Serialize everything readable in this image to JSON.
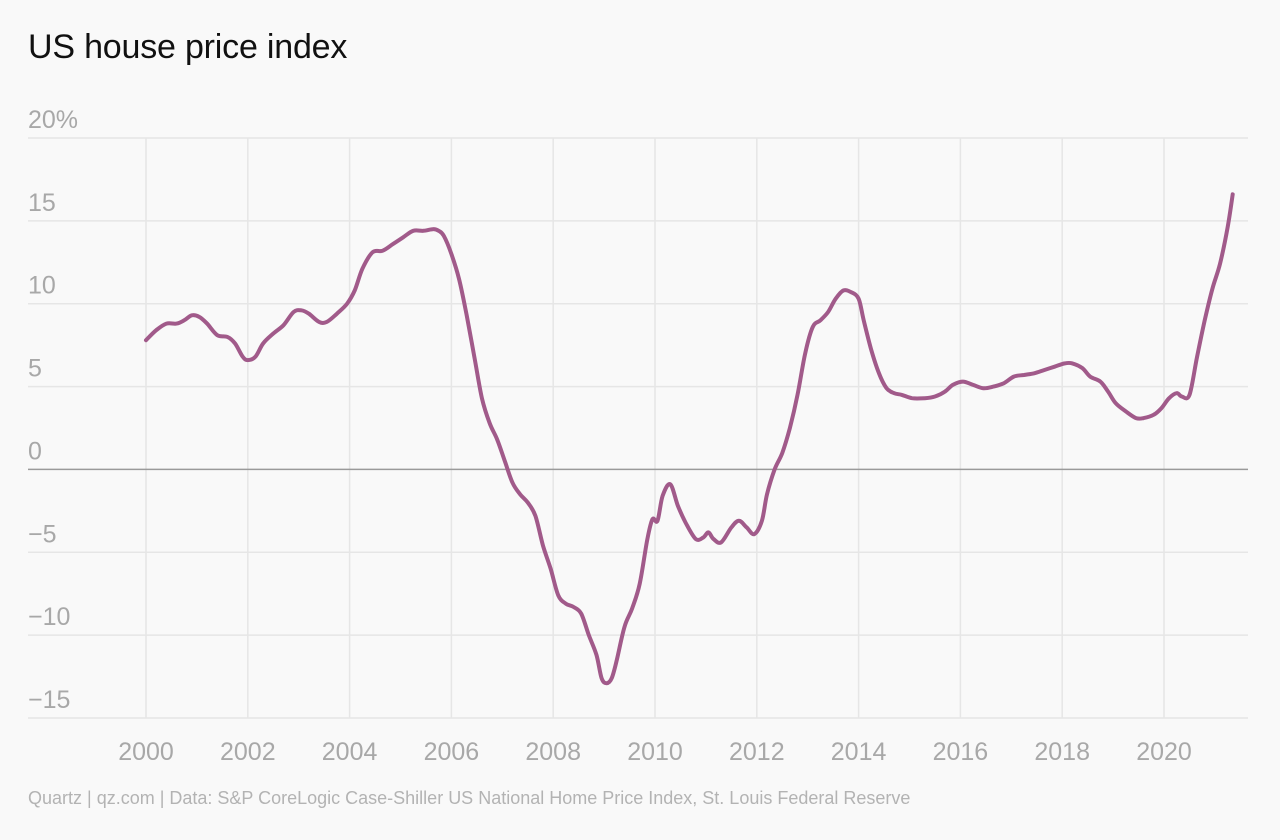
{
  "title": "US house price index",
  "source": "Quartz | qz.com | Data: S&P CoreLogic Case-Shiller US National Home Price Index, St. Louis Federal Reserve",
  "colors": {
    "line": "#a15a8a",
    "grid": "#e6e6e6",
    "zero_line": "#9a9a9a",
    "tick_text": "#a8a8a8",
    "background": "#f9f9f9"
  },
  "chart_data": {
    "type": "line",
    "title": "US house price index",
    "xlabel": "",
    "ylabel": "",
    "xlim": [
      1999.3,
      2021.7
    ],
    "ylim": [
      -15,
      20
    ],
    "y_ticks": [
      20,
      15,
      10,
      5,
      0,
      -5,
      -10,
      -15
    ],
    "y_tick_labels": [
      "20%",
      "15",
      "10",
      "5",
      "0",
      "−5",
      "−10",
      "−15"
    ],
    "x_ticks": [
      2000,
      2002,
      2004,
      2006,
      2008,
      2010,
      2012,
      2014,
      2016,
      2018,
      2020
    ],
    "x_tick_labels": [
      "2000",
      "2002",
      "2004",
      "2006",
      "2008",
      "2010",
      "2012",
      "2014",
      "2016",
      "2018",
      "2020"
    ],
    "grid": true,
    "legend": "none",
    "series": [
      {
        "points": [
          [
            2000.0,
            7.8
          ],
          [
            2000.2,
            8.4
          ],
          [
            2000.4,
            8.8
          ],
          [
            2000.6,
            8.8
          ],
          [
            2000.75,
            9.0
          ],
          [
            2000.9,
            9.3
          ],
          [
            2001.05,
            9.2
          ],
          [
            2001.2,
            8.8
          ],
          [
            2001.4,
            8.1
          ],
          [
            2001.6,
            8.0
          ],
          [
            2001.75,
            7.6
          ],
          [
            2001.9,
            6.8
          ],
          [
            2002.0,
            6.6
          ],
          [
            2002.15,
            6.8
          ],
          [
            2002.3,
            7.6
          ],
          [
            2002.5,
            8.2
          ],
          [
            2002.7,
            8.7
          ],
          [
            2002.9,
            9.5
          ],
          [
            2003.05,
            9.6
          ],
          [
            2003.2,
            9.4
          ],
          [
            2003.4,
            8.9
          ],
          [
            2003.55,
            8.9
          ],
          [
            2003.75,
            9.4
          ],
          [
            2003.95,
            10.0
          ],
          [
            2004.1,
            10.8
          ],
          [
            2004.25,
            12.1
          ],
          [
            2004.45,
            13.1
          ],
          [
            2004.65,
            13.2
          ],
          [
            2004.85,
            13.6
          ],
          [
            2005.05,
            14.0
          ],
          [
            2005.25,
            14.4
          ],
          [
            2005.45,
            14.4
          ],
          [
            2005.65,
            14.5
          ],
          [
            2005.75,
            14.4
          ],
          [
            2005.85,
            14.1
          ],
          [
            2006.0,
            13.0
          ],
          [
            2006.15,
            11.5
          ],
          [
            2006.3,
            9.3
          ],
          [
            2006.45,
            6.8
          ],
          [
            2006.6,
            4.3
          ],
          [
            2006.75,
            2.8
          ],
          [
            2006.9,
            1.8
          ],
          [
            2007.05,
            0.5
          ],
          [
            2007.2,
            -0.8
          ],
          [
            2007.35,
            -1.5
          ],
          [
            2007.5,
            -2.0
          ],
          [
            2007.65,
            -2.8
          ],
          [
            2007.8,
            -4.6
          ],
          [
            2007.95,
            -6.0
          ],
          [
            2008.1,
            -7.6
          ],
          [
            2008.25,
            -8.1
          ],
          [
            2008.4,
            -8.3
          ],
          [
            2008.55,
            -8.7
          ],
          [
            2008.7,
            -10.0
          ],
          [
            2008.85,
            -11.2
          ],
          [
            2008.95,
            -12.6
          ],
          [
            2009.05,
            -12.9
          ],
          [
            2009.15,
            -12.6
          ],
          [
            2009.25,
            -11.5
          ],
          [
            2009.4,
            -9.5
          ],
          [
            2009.55,
            -8.4
          ],
          [
            2009.7,
            -6.9
          ],
          [
            2009.85,
            -4.2
          ],
          [
            2009.95,
            -3.0
          ],
          [
            2010.05,
            -3.1
          ],
          [
            2010.15,
            -1.6
          ],
          [
            2010.3,
            -0.9
          ],
          [
            2010.45,
            -2.2
          ],
          [
            2010.6,
            -3.2
          ],
          [
            2010.8,
            -4.2
          ],
          [
            2010.95,
            -4.1
          ],
          [
            2011.05,
            -3.8
          ],
          [
            2011.15,
            -4.2
          ],
          [
            2011.3,
            -4.4
          ],
          [
            2011.5,
            -3.5
          ],
          [
            2011.65,
            -3.1
          ],
          [
            2011.8,
            -3.5
          ],
          [
            2011.95,
            -3.9
          ],
          [
            2012.1,
            -3.1
          ],
          [
            2012.2,
            -1.5
          ],
          [
            2012.35,
            0.0
          ],
          [
            2012.5,
            1.0
          ],
          [
            2012.65,
            2.5
          ],
          [
            2012.8,
            4.5
          ],
          [
            2012.95,
            7.0
          ],
          [
            2013.1,
            8.6
          ],
          [
            2013.25,
            9.0
          ],
          [
            2013.4,
            9.5
          ],
          [
            2013.55,
            10.3
          ],
          [
            2013.7,
            10.8
          ],
          [
            2013.85,
            10.7
          ],
          [
            2014.0,
            10.3
          ],
          [
            2014.1,
            9.0
          ],
          [
            2014.25,
            7.2
          ],
          [
            2014.4,
            5.8
          ],
          [
            2014.55,
            4.9
          ],
          [
            2014.7,
            4.6
          ],
          [
            2014.85,
            4.5
          ],
          [
            2015.05,
            4.3
          ],
          [
            2015.3,
            4.3
          ],
          [
            2015.5,
            4.4
          ],
          [
            2015.7,
            4.7
          ],
          [
            2015.85,
            5.1
          ],
          [
            2016.05,
            5.3
          ],
          [
            2016.25,
            5.1
          ],
          [
            2016.45,
            4.9
          ],
          [
            2016.65,
            5.0
          ],
          [
            2016.85,
            5.2
          ],
          [
            2017.05,
            5.6
          ],
          [
            2017.25,
            5.7
          ],
          [
            2017.45,
            5.8
          ],
          [
            2017.65,
            6.0
          ],
          [
            2017.85,
            6.2
          ],
          [
            2018.05,
            6.4
          ],
          [
            2018.2,
            6.4
          ],
          [
            2018.4,
            6.1
          ],
          [
            2018.55,
            5.6
          ],
          [
            2018.75,
            5.3
          ],
          [
            2018.9,
            4.7
          ],
          [
            2019.05,
            4.0
          ],
          [
            2019.25,
            3.5
          ],
          [
            2019.45,
            3.1
          ],
          [
            2019.6,
            3.1
          ],
          [
            2019.8,
            3.3
          ],
          [
            2019.95,
            3.7
          ],
          [
            2020.1,
            4.3
          ],
          [
            2020.25,
            4.6
          ],
          [
            2020.35,
            4.4
          ],
          [
            2020.5,
            4.5
          ],
          [
            2020.65,
            6.8
          ],
          [
            2020.8,
            9.0
          ],
          [
            2020.95,
            10.9
          ],
          [
            2021.1,
            12.4
          ],
          [
            2021.25,
            14.6
          ],
          [
            2021.35,
            16.6
          ]
        ]
      }
    ]
  }
}
